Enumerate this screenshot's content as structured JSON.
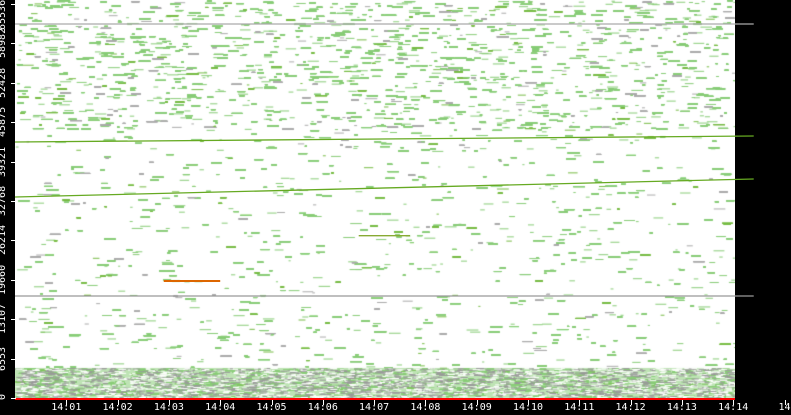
{
  "chart_data": {
    "type": "scatter",
    "title": "",
    "xlabel": "",
    "ylabel": "",
    "x_ticks": [
      "14:01",
      "14:02",
      "14:03",
      "14:04",
      "14:05",
      "14:06",
      "14:07",
      "14:08",
      "14:09",
      "14:10",
      "14:11",
      "14:12",
      "14:13",
      "14:14",
      "14"
    ],
    "y_ticks": [
      "0",
      "6553",
      "13107",
      "19660",
      "26214",
      "32768",
      "39321",
      "45875",
      "52428",
      "58982",
      "65536"
    ],
    "xlim": [
      "14:00",
      "14:14:25"
    ],
    "ylim": [
      0,
      65536
    ],
    "grid": false,
    "dense_band": [
      0,
      5000
    ],
    "colors": {
      "background": "#ffffff",
      "points": "#88cc77",
      "highlight": "#66aa00",
      "hot": "#dd6600",
      "line": "#888888",
      "axis": "#ff0000",
      "frame": "#000000"
    },
    "streaks": [
      {
        "from": [
          "14:00",
          42582
        ],
        "to": [
          "14:14.4",
          43580
        ],
        "color": "#66aa22"
      },
      {
        "from": [
          "14:00",
          33434
        ],
        "to": [
          "14:14.4",
          36428
        ],
        "color": "#66aa22"
      },
      {
        "from": [
          "14:00",
          16966
        ],
        "to": [
          "14:14.4",
          16966
        ],
        "color": "#999999"
      },
      {
        "from": [
          "14:00",
          62209
        ],
        "to": [
          "14:14.4",
          62209
        ],
        "color": "#aaaaaa"
      },
      {
        "from": [
          "14:02.9",
          19461
        ],
        "to": [
          "14:04",
          19461
        ],
        "color": "#dd6600"
      },
      {
        "from": [
          "14:06.7",
          27000
        ],
        "to": [
          "14:07.7",
          27000
        ],
        "color": "#88aa33"
      }
    ]
  }
}
